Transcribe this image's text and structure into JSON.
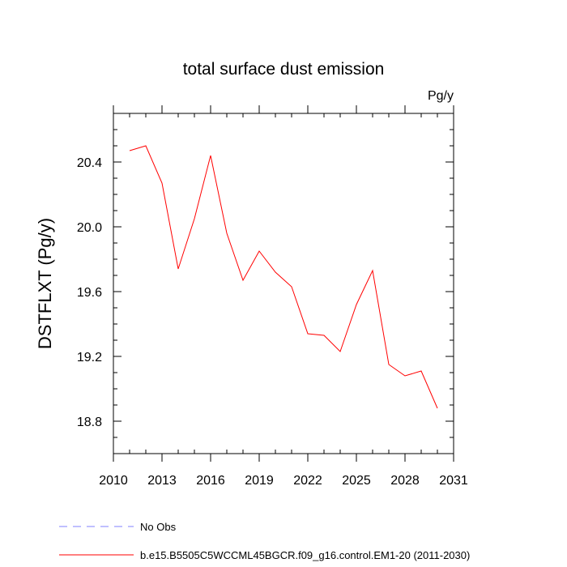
{
  "chart_data": {
    "type": "line",
    "title": "total surface dust emission",
    "units_label": "Pg/y",
    "ylabel": "DSTFLXT  (Pg/y)",
    "xlabel": "",
    "xlim": [
      2010,
      2031
    ],
    "ylim": [
      18.6,
      20.7
    ],
    "x_major_ticks": [
      2010,
      2013,
      2016,
      2019,
      2022,
      2025,
      2028,
      2031
    ],
    "x_tick_labels": [
      "2010",
      "2013",
      "2016",
      "2019",
      "2022",
      "2025",
      "2028",
      "2031"
    ],
    "y_major_ticks": [
      18.8,
      19.2,
      19.6,
      20.0,
      20.4
    ],
    "y_tick_labels": [
      "18.8",
      "19.2",
      "19.6",
      "20.0",
      "20.4"
    ],
    "series": [
      {
        "name": "b.e15.B5505C5WCCML45BGCR.f09_g16.control.EM1-20 (2011-2030)",
        "color": "#ff0000",
        "style": "solid",
        "x": [
          2011,
          2012,
          2013,
          2014,
          2015,
          2016,
          2017,
          2018,
          2019,
          2020,
          2021,
          2022,
          2023,
          2024,
          2025,
          2026,
          2027,
          2028,
          2029,
          2030
        ],
        "values": [
          20.47,
          20.5,
          20.27,
          19.74,
          20.05,
          20.44,
          19.96,
          19.67,
          19.85,
          19.72,
          19.63,
          19.34,
          19.33,
          19.23,
          19.52,
          19.73,
          19.15,
          19.08,
          19.11,
          18.88
        ]
      }
    ],
    "legend": [
      {
        "label": "No Obs",
        "color": "#8080ff",
        "style": "dashed"
      },
      {
        "label": "b.e15.B5505C5WCCML45BGCR.f09_g16.control.EM1-20 (2011-2030)",
        "color": "#ff0000",
        "style": "solid"
      }
    ],
    "grid": false,
    "legend_position": "bottom"
  }
}
